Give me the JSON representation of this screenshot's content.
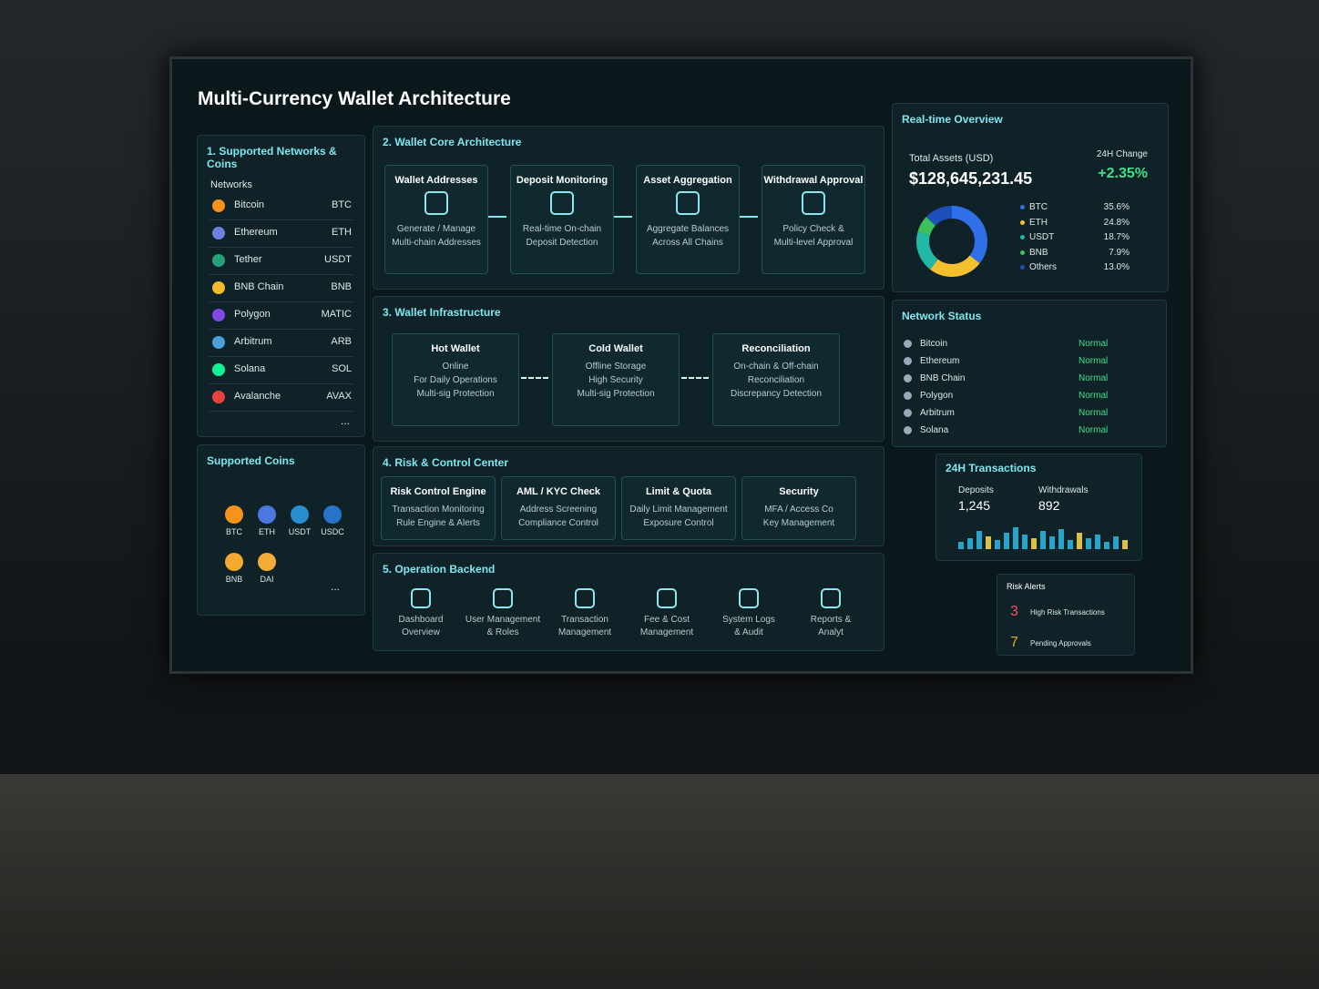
{
  "title": "Multi-Currency Wallet Architecture",
  "networks": {
    "title": "1. Supported Networks & Coins",
    "subtitle": "Networks",
    "items": [
      {
        "name": "Bitcoin",
        "symbol": "BTC",
        "color": "#f7931a"
      },
      {
        "name": "Ethereum",
        "symbol": "ETH",
        "color": "#6f7fe0"
      },
      {
        "name": "Tether",
        "symbol": "USDT",
        "color": "#26a17b"
      },
      {
        "name": "BNB Chain",
        "symbol": "BNB",
        "color": "#f3ba2f"
      },
      {
        "name": "Polygon",
        "symbol": "MATIC",
        "color": "#8247e5"
      },
      {
        "name": "Arbitrum",
        "symbol": "ARB",
        "color": "#4d9fd6"
      },
      {
        "name": "Solana",
        "symbol": "SOL",
        "color": "#14f195"
      },
      {
        "name": "Avalanche",
        "symbol": "AVAX",
        "color": "#e84142"
      }
    ],
    "more": "..."
  },
  "coins": {
    "title": "Supported Coins",
    "items": [
      {
        "symbol": "BTC",
        "color": "#f7931a"
      },
      {
        "symbol": "ETH",
        "color": "#4a78e0"
      },
      {
        "symbol": "USDT",
        "color": "#2a8fd0"
      },
      {
        "symbol": "USDC",
        "color": "#2775ca"
      },
      {
        "symbol": "BNB",
        "color": "#f3a82f"
      },
      {
        "symbol": "DAI",
        "color": "#f5ac37"
      }
    ],
    "more": "..."
  },
  "core": {
    "title": "2. Wallet Core Architecture",
    "steps": [
      {
        "title": "Wallet Addresses",
        "lines": [
          "Generate / Manage",
          "Multi-chain Addresses"
        ]
      },
      {
        "title": "Deposit Monitoring",
        "lines": [
          "Real-time On-chain",
          "Deposit Detection"
        ]
      },
      {
        "title": "Asset Aggregation",
        "lines": [
          "Aggregate Balances",
          "Across All Chains"
        ]
      },
      {
        "title": "Withdrawal Approval",
        "lines": [
          "Policy Check &",
          "Multi-level Approval"
        ]
      }
    ]
  },
  "infra": {
    "title": "3. Wallet Infrastructure",
    "items": [
      {
        "title": "Hot Wallet",
        "lines": [
          "Online",
          "For Daily Operations",
          "Multi-sig Protection"
        ]
      },
      {
        "title": "Cold Wallet",
        "lines": [
          "Offline Storage",
          "High Security",
          "Multi-sig Protection"
        ]
      },
      {
        "title": "Reconciliation",
        "lines": [
          "On-chain & Off-chain",
          "Reconciliation",
          "Discrepancy Detection"
        ]
      }
    ]
  },
  "risk": {
    "title": "4. Risk & Control Center",
    "items": [
      {
        "title": "Risk Control Engine",
        "lines": [
          "Transaction Monitoring",
          "Rule Engine & Alerts"
        ]
      },
      {
        "title": "AML / KYC Check",
        "lines": [
          "Address Screening",
          "Compliance Control"
        ]
      },
      {
        "title": "Limit & Quota",
        "lines": [
          "Daily Limit Management",
          "Exposure Control"
        ]
      },
      {
        "title": "Security",
        "lines": [
          "MFA / Access Co",
          "Key Management"
        ]
      }
    ]
  },
  "ops": {
    "title": "5. Operation Backend",
    "items": [
      {
        "lines": [
          "Dashboard",
          "Overview"
        ]
      },
      {
        "lines": [
          "User Management",
          "& Roles"
        ]
      },
      {
        "lines": [
          "Transaction",
          "Management"
        ]
      },
      {
        "lines": [
          "Fee & Cost",
          "Management"
        ]
      },
      {
        "lines": [
          "System Logs",
          "& Audit"
        ]
      },
      {
        "lines": [
          "Reports &",
          "Analyt"
        ]
      }
    ]
  },
  "overview": {
    "title": "Real-time Overview",
    "total_label": "Total Assets (USD)",
    "total": "$128,645,231.45",
    "change_label": "24H Change",
    "change": "+2.35%",
    "allocation": [
      {
        "name": "BTC",
        "value": 35.6,
        "value_label": "35.6%",
        "color": "#2f6fe8"
      },
      {
        "name": "ETH",
        "value": 24.8,
        "value_label": "24.8%",
        "color": "#f5c02e"
      },
      {
        "name": "USDT",
        "value": 18.7,
        "value_label": "18.7%",
        "color": "#22b8a8"
      },
      {
        "name": "BNB",
        "value": 7.9,
        "value_label": "7.9%",
        "color": "#3dbf5a"
      },
      {
        "name": "Others",
        "value": 13.0,
        "value_label": "13.0%",
        "color": "#1e4fb8"
      }
    ]
  },
  "status": {
    "title": "Network Status",
    "items": [
      {
        "name": "Bitcoin",
        "status": "Normal"
      },
      {
        "name": "Ethereum",
        "status": "Normal"
      },
      {
        "name": "BNB Chain",
        "status": "Normal"
      },
      {
        "name": "Polygon",
        "status": "Normal"
      },
      {
        "name": "Arbitrum",
        "status": "Normal"
      },
      {
        "name": "Solana",
        "status": "Normal"
      }
    ]
  },
  "transactions": {
    "title": "24H Transactions",
    "deposits_label": "Deposits",
    "deposits": "1,245",
    "withdrawals_label": "Withdrawals",
    "withdrawals": "892"
  },
  "alerts": {
    "title": "Risk Alerts",
    "items": [
      {
        "count": "3",
        "label": "High Risk Transactions"
      },
      {
        "count": "7",
        "label": "Pending Approvals"
      }
    ]
  }
}
